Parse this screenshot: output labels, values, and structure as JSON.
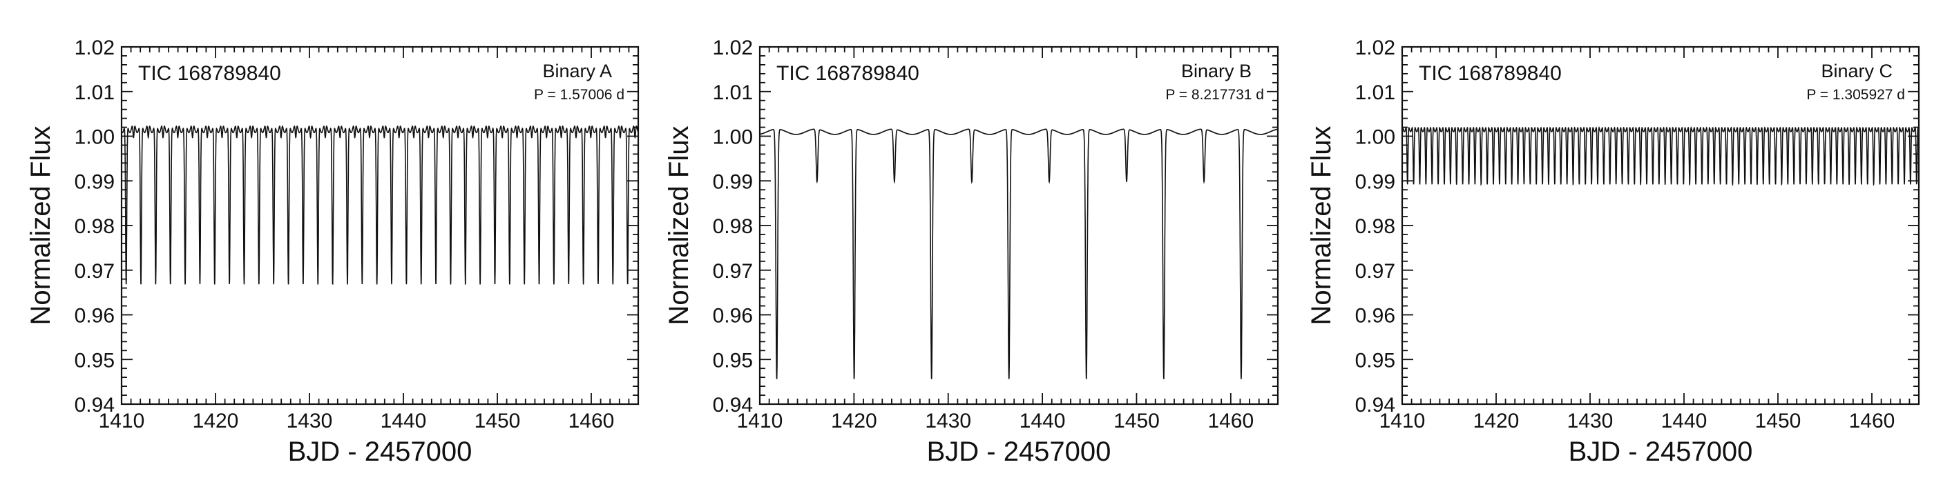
{
  "chart_data": [
    {
      "type": "line",
      "target": "TIC 168789840",
      "label": "Binary A",
      "period_label": "P = 1.57006 d",
      "period": 1.57006,
      "first_eclipse": 1412.06,
      "primary_depth_flux": 0.9656,
      "secondary_depth_flux": 0.9985,
      "baseline_flux": 1.002,
      "variability_amplitude": 0.0012,
      "xlabel": "BJD - 2457000",
      "ylabel": "Normalized Flux",
      "xlim": [
        1410,
        1465
      ],
      "ylim": [
        0.94,
        1.02
      ],
      "xticks": [
        "1410",
        "1420",
        "1430",
        "1440",
        "1450",
        "1460"
      ],
      "yticks": [
        "0.94",
        "0.95",
        "0.96",
        "0.97",
        "0.98",
        "0.99",
        "1.00",
        "1.01",
        "1.02"
      ]
    },
    {
      "type": "line",
      "target": "TIC 168789840",
      "label": "Binary B",
      "period_label": "P = 8.217731 d",
      "period": 8.217731,
      "first_eclipse": 1411.8,
      "secondary_phase": 0.52,
      "primary_depth_flux": 0.945,
      "secondary_depth_flux": 0.9892,
      "baseline_flux": 1.001,
      "variability_amplitude": 0.0006,
      "xlabel": "BJD - 2457000",
      "ylabel": "Normalized Flux",
      "xlim": [
        1410,
        1465
      ],
      "ylim": [
        0.94,
        1.02
      ],
      "xticks": [
        "1410",
        "1420",
        "1430",
        "1440",
        "1450",
        "1460"
      ],
      "yticks": [
        "0.94",
        "0.95",
        "0.96",
        "0.97",
        "0.98",
        "0.99",
        "1.00",
        "1.01",
        "1.02"
      ]
    },
    {
      "type": "line",
      "target": "TIC 168789840",
      "label": "Binary C",
      "period_label": "P = 1.305927 d",
      "period": 1.305927,
      "first_eclipse": 1411.22,
      "primary_depth_flux": 0.9882,
      "secondary_depth_flux": 0.9882,
      "baseline_flux": 1.002,
      "variability_amplitude": 0.001,
      "xlabel": "BJD - 2457000",
      "ylabel": "Normalized Flux",
      "xlim": [
        1410,
        1465
      ],
      "ylim": [
        0.94,
        1.02
      ],
      "xticks": [
        "1410",
        "1420",
        "1430",
        "1440",
        "1450",
        "1460"
      ],
      "yticks": [
        "0.94",
        "0.95",
        "0.96",
        "0.97",
        "0.98",
        "0.99",
        "1.00",
        "1.01",
        "1.02"
      ]
    }
  ]
}
